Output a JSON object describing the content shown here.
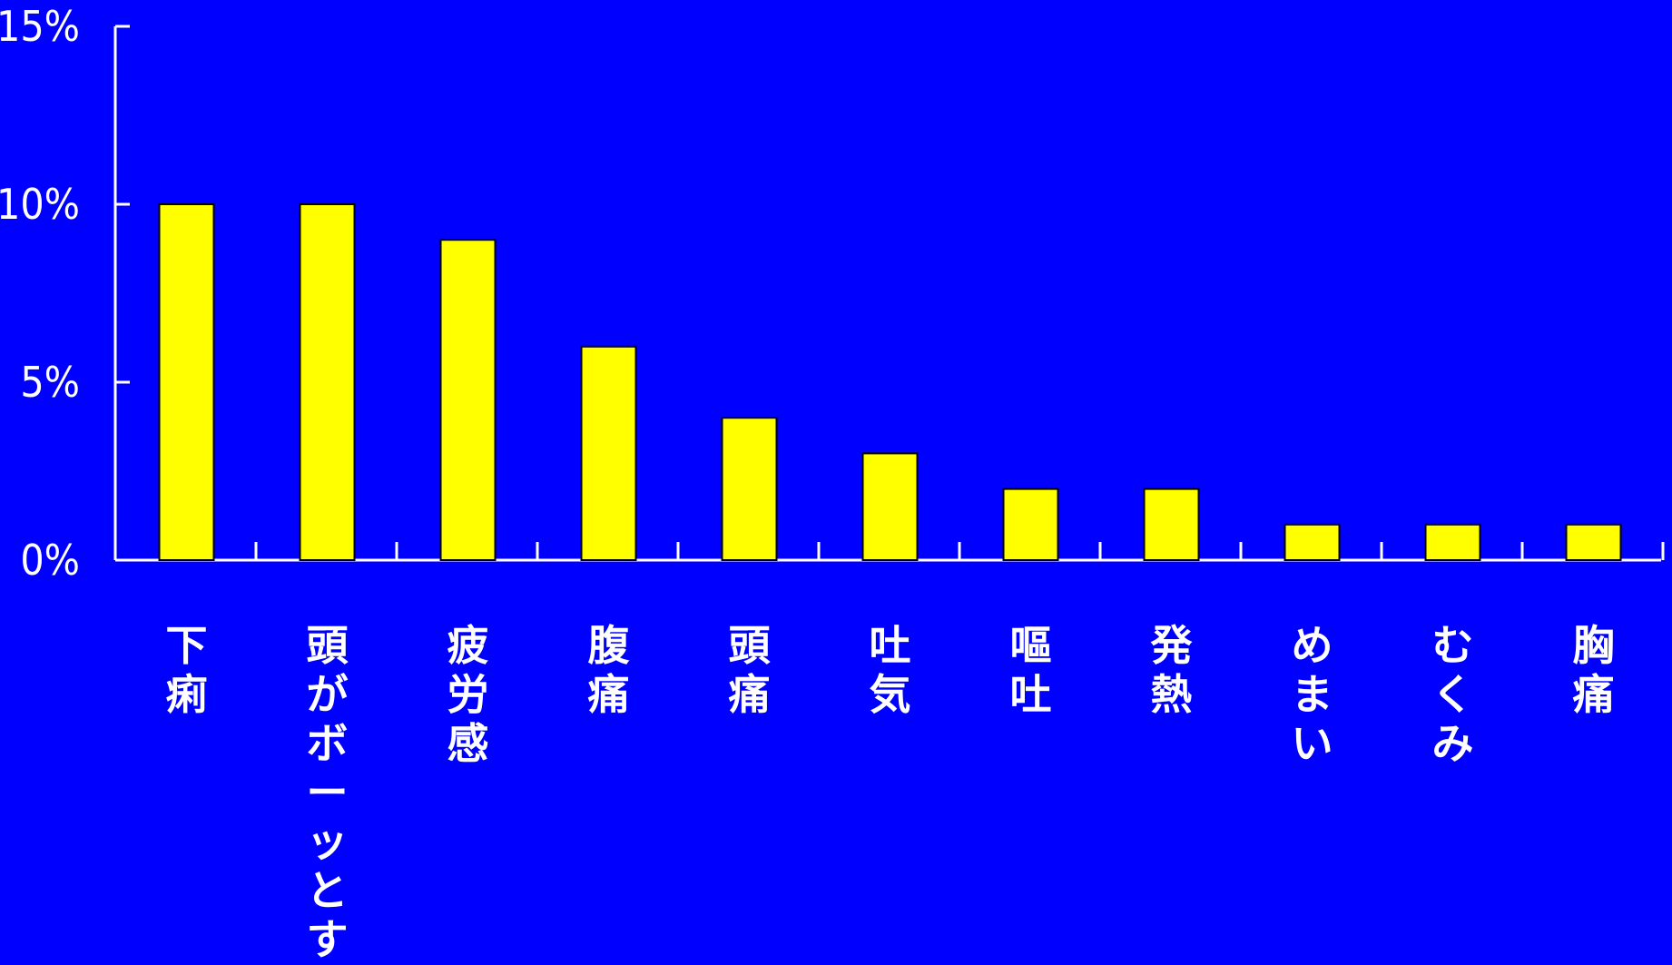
{
  "chart_data": {
    "type": "bar",
    "title": "",
    "xlabel": "",
    "ylabel": "",
    "ylim": [
      0,
      15
    ],
    "yticks": [
      0,
      5,
      10,
      15
    ],
    "ytick_labels": [
      "0%",
      "5%",
      "10%",
      "15%"
    ],
    "grid": false,
    "legend": "none",
    "categories": [
      "下痢",
      "頭がボーッとする",
      "疲労感",
      "腹痛",
      "頭痛",
      "吐気",
      "嘔吐",
      "発熱",
      "めまい",
      "むくみ",
      "胸痛"
    ],
    "values": [
      10,
      10,
      9,
      6,
      4,
      3,
      2,
      2,
      1,
      1,
      1
    ],
    "colors": {
      "background": "#0000FF",
      "bar_fill": "#FFFF00",
      "bar_stroke": "#000000",
      "axis": "#FFFFFF",
      "text": "#FFFFFF"
    }
  }
}
